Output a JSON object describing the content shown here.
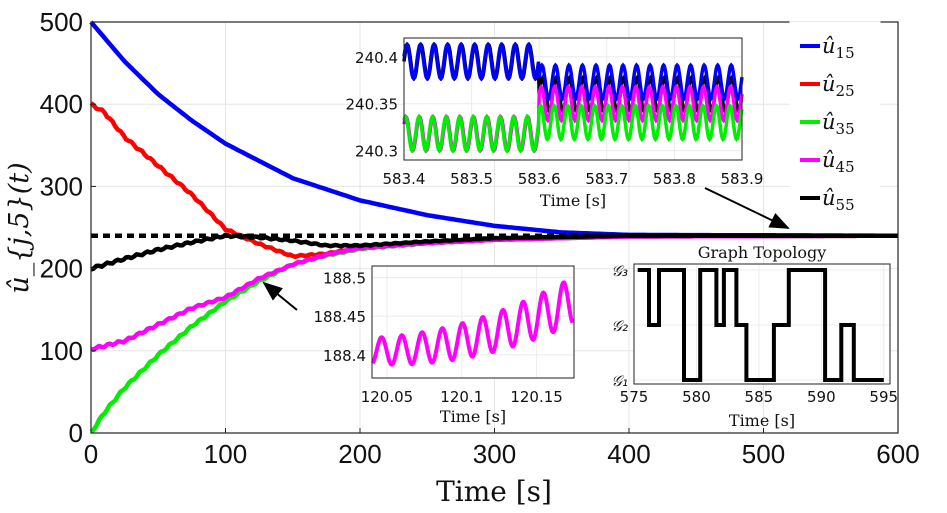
{
  "chart_data": [
    {
      "id": "main",
      "type": "line",
      "xlabel": "Time [s]",
      "ylabel": "û_{j,5}(t)",
      "xlim": [
        0,
        600
      ],
      "ylim": [
        0,
        500
      ],
      "xticks": [
        "0",
        "100",
        "200",
        "300",
        "400",
        "500",
        "600"
      ],
      "yticks": [
        "0",
        "100",
        "200",
        "300",
        "400",
        "500"
      ],
      "grid": true,
      "reference_value": 240,
      "legend": {
        "placement": "top-right",
        "entries": [
          {
            "label": "û",
            "sub": "15",
            "color": "#0000ff"
          },
          {
            "label": "û",
            "sub": "25",
            "color": "#ff0000"
          },
          {
            "label": "û",
            "sub": "35",
            "color": "#00ee00"
          },
          {
            "label": "û",
            "sub": "45",
            "color": "#ff00ff"
          },
          {
            "label": "û",
            "sub": "55",
            "color": "#000000"
          }
        ]
      },
      "series": [
        {
          "name": "û15",
          "color": "#0000ff",
          "x": [
            0,
            25,
            50,
            75,
            100,
            150,
            200,
            250,
            300,
            350,
            400,
            600
          ],
          "y": [
            500,
            452,
            412,
            380,
            352,
            310,
            283,
            265,
            252,
            244,
            241,
            240
          ]
        },
        {
          "name": "û25",
          "color": "#ff0000",
          "x": [
            0,
            10,
            25,
            50,
            75,
            100,
            125,
            150,
            175,
            200,
            250,
            300,
            400,
            600
          ],
          "y": [
            400,
            390,
            360,
            325,
            290,
            248,
            230,
            215,
            218,
            226,
            232,
            236,
            239,
            240
          ]
        },
        {
          "name": "û35",
          "color": "#00ee00",
          "x": [
            0,
            10,
            25,
            50,
            75,
            100,
            125,
            150,
            175,
            200,
            250,
            300,
            400,
            600
          ],
          "y": [
            0,
            25,
            55,
            95,
            130,
            160,
            185,
            205,
            216,
            224,
            231,
            235,
            239,
            240
          ]
        },
        {
          "name": "û45",
          "color": "#ff00ff",
          "x": [
            0,
            25,
            50,
            75,
            100,
            125,
            150,
            175,
            200,
            250,
            300,
            400,
            600
          ],
          "y": [
            102,
            112,
            132,
            152,
            165,
            188,
            205,
            217,
            225,
            231,
            235,
            239,
            240
          ]
        },
        {
          "name": "û55",
          "color": "#000000",
          "x": [
            0,
            25,
            50,
            75,
            100,
            125,
            150,
            175,
            200,
            250,
            300,
            400,
            600
          ],
          "y": [
            200,
            212,
            223,
            232,
            240,
            238,
            234,
            228,
            228,
            233,
            237,
            240,
            240
          ]
        }
      ]
    },
    {
      "id": "inset_top",
      "type": "line",
      "xlabel": "Time [s]",
      "xlim": [
        583.4,
        583.9
      ],
      "ylim": [
        240.29,
        240.42
      ],
      "xticks": [
        "583.4",
        "583.5",
        "583.6",
        "583.7",
        "583.8",
        "583.9"
      ],
      "xtick_values": [
        583.4,
        583.5,
        583.6,
        583.7,
        583.8,
        583.9
      ],
      "yticks": [
        "240.3",
        "240.35",
        "240.4"
      ],
      "ytick_values": [
        240.3,
        240.35,
        240.4
      ],
      "oscillation_period_s": 0.02,
      "switch_time_s": 583.6,
      "series": [
        {
          "name": "û55",
          "color": "#000000",
          "center_before": 240.395,
          "center_after": 240.36,
          "amplitude": 0.018
        },
        {
          "name": "û15",
          "color": "#0000ff",
          "center_before": 240.395,
          "center_after": 240.373,
          "amplitude": 0.018
        },
        {
          "name": "û45",
          "color": "#ff00ff",
          "center_before": 240.318,
          "center_after": 240.35,
          "amplitude": 0.018
        },
        {
          "name": "û35",
          "color": "#00ee00",
          "center_before": 240.318,
          "center_after": 240.33,
          "amplitude": 0.018
        }
      ]
    },
    {
      "id": "inset_mid",
      "type": "line",
      "xlabel": "Time [s]",
      "xlim": [
        120.04,
        120.175
      ],
      "ylim": [
        188.37,
        188.515
      ],
      "xticks": [
        "120.05",
        "120.1",
        "120.15"
      ],
      "xtick_values": [
        120.05,
        120.1,
        120.15
      ],
      "yticks": [
        "188.4",
        "188.45",
        "188.5"
      ],
      "ytick_values": [
        188.4,
        188.45,
        188.5
      ],
      "series": [
        {
          "name": "û45",
          "color": "#ff00ff",
          "center_start": 188.405,
          "center_end": 188.47,
          "amplitude_start": 0.017,
          "amplitude_end": 0.03,
          "period": 0.0135
        }
      ]
    },
    {
      "id": "inset_graph",
      "type": "line",
      "title": "Graph Topology",
      "xlabel": "Time [s]",
      "xlim": [
        575,
        595.5
      ],
      "xticks": [
        "575",
        "580",
        "585",
        "590",
        "595"
      ],
      "xtick_values": [
        575,
        580,
        585,
        590,
        595
      ],
      "yticks": [
        "𝒢₁",
        "𝒢₂",
        "𝒢₃"
      ],
      "ytick_values": [
        1,
        2,
        3
      ],
      "ylim": [
        1,
        3
      ],
      "series": [
        {
          "name": "topology",
          "color": "#000000",
          "x": [
            575.3,
            576.2,
            576.2,
            577.0,
            577.0,
            579.0,
            579.0,
            580.3,
            580.3,
            581.6,
            581.6,
            582.2,
            582.2,
            583.2,
            583.2,
            584.0,
            584.0,
            584.4,
            584.4,
            586.2,
            586.2,
            587.4,
            587.4,
            590.3,
            590.3,
            591.6,
            591.6,
            592.6,
            592.6,
            595.0
          ],
          "y": [
            3,
            3,
            2,
            2,
            3,
            3,
            1,
            1,
            3,
            3,
            2,
            2,
            3,
            3,
            2,
            2,
            1,
            1,
            1,
            1,
            2,
            2,
            3,
            3,
            1,
            1,
            2,
            2,
            1,
            1
          ]
        }
      ]
    }
  ]
}
